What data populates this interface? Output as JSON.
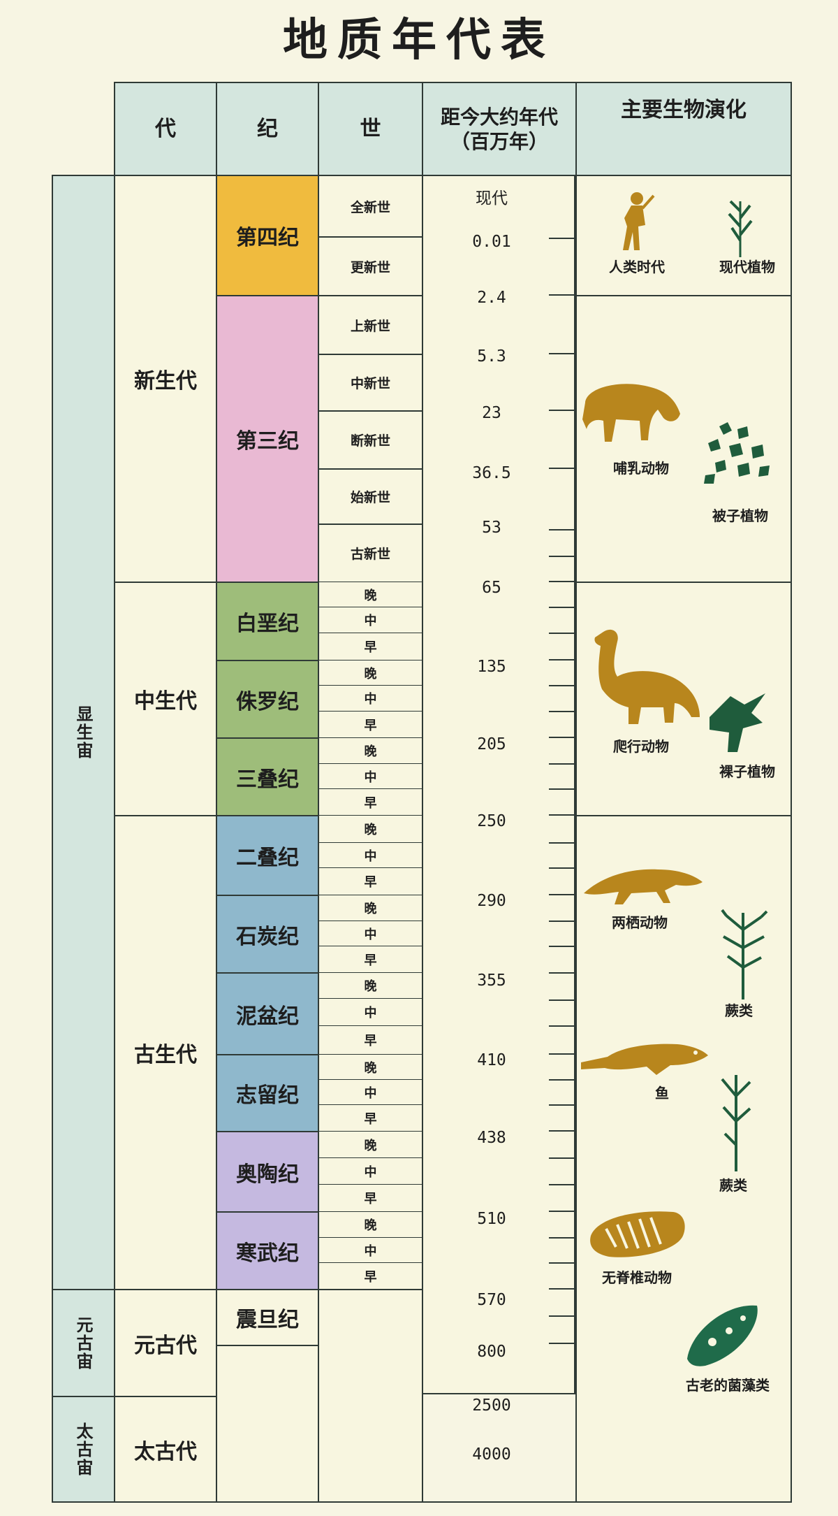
{
  "title": "地质年代表",
  "headers": {
    "era": "代",
    "period": "纪",
    "epoch": "世",
    "age": "距今大约年代\n（百万年）",
    "evolution": "主要生物演化"
  },
  "eons": [
    "显生宙",
    "元古宙",
    "太古宙"
  ],
  "eras": [
    "新生代",
    "中生代",
    "古生代",
    "元古代",
    "太古代"
  ],
  "periods": [
    "第四纪",
    "第三纪",
    "白垩纪",
    "侏罗纪",
    "三叠纪",
    "二叠纪",
    "石炭纪",
    "泥盆纪",
    "志留纪",
    "奥陶纪",
    "寒武纪",
    "震旦纪"
  ],
  "period_colors": [
    "#f0bb3e",
    "#e9b9d3",
    "#9ebd7a",
    "#9ebd7a",
    "#9ebd7a",
    "#8fb8cc",
    "#8fb8cc",
    "#8fb8cc",
    "#8fb8cc",
    "#c5b9e0",
    "#c5b9e0",
    "#f8f6e0"
  ],
  "cenozoic_epochs": [
    "全新世",
    "更新世",
    "上新世",
    "中新世",
    "断新世",
    "始新世",
    "古新世"
  ],
  "subdivisions": [
    "晚",
    "中",
    "早"
  ],
  "ages": [
    "现代",
    "0.01",
    "2.4",
    "5.3",
    "23",
    "36.5",
    "53",
    "65",
    "135",
    "205",
    "250",
    "290",
    "355",
    "410",
    "438",
    "510",
    "570",
    "800",
    "2500",
    "4000"
  ],
  "evolution_labels": [
    "人类时代",
    "现代植物",
    "哺乳动物",
    "被子植物",
    "爬行动物",
    "裸子植物",
    "两栖动物",
    "蕨类",
    "鱼",
    "蕨类",
    "无脊椎动物",
    "古老的菌藻类"
  ],
  "colors": {
    "header_bg": "#d4e6de",
    "animal": "#b8861d",
    "plant": "#1f5c3c",
    "algae": "#1f6b4a"
  }
}
